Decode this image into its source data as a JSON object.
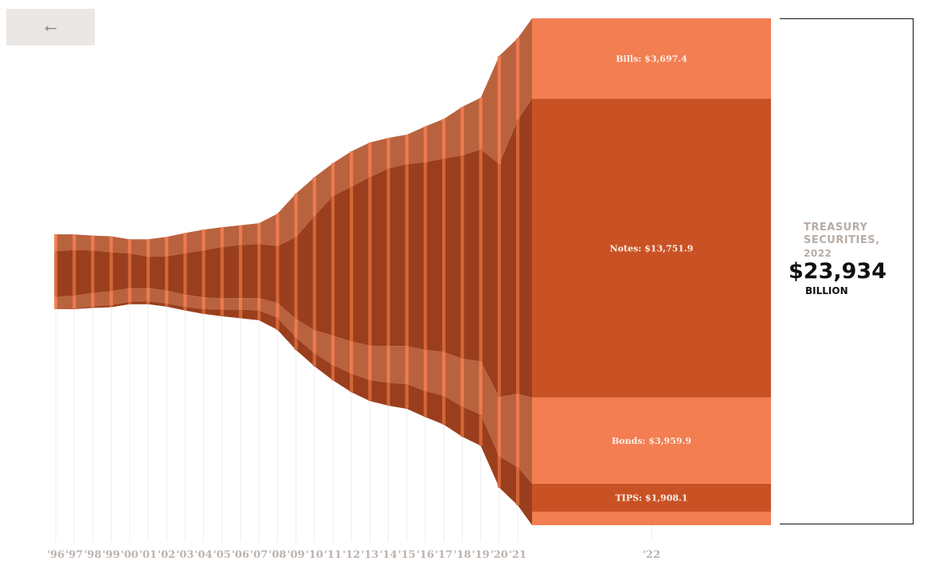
{
  "nav": {
    "back_icon": "back-arrow-icon",
    "back_glyph": "⭠"
  },
  "colors": {
    "bills": "#f27e52",
    "notes": "#c95225",
    "bonds": "#f27e52",
    "tips": "#c95225",
    "history_light": "#b9623e",
    "history_dark": "#9a3e1d",
    "year_separator": "#f27e52",
    "gridline": "#ececec",
    "tick_text": "#bdb3ae"
  },
  "total": {
    "title_line1": "TREASURY",
    "title_line2": "SECURITIES,",
    "year": "2022",
    "value": "$23,934",
    "unit": "BILLION"
  },
  "chart_data": {
    "type": "area",
    "title": "",
    "unit": "$ billion",
    "x": [
      "'96",
      "'97",
      "'98",
      "'99",
      "'00",
      "'01",
      "'02",
      "'03",
      "'04",
      "'05",
      "'06",
      "'07",
      "'08",
      "'09",
      "'10",
      "'11",
      "'12",
      "'13",
      "'14",
      "'15",
      "'16",
      "'17",
      "'18",
      "'19",
      "'20",
      "'21",
      "'22"
    ],
    "series": [
      {
        "name": "Bills",
        "values": [
          777,
          715,
          691,
          737,
          647,
          811,
          889,
          928,
          962,
          914,
          911,
          958,
          1490,
          1997,
          1784,
          1521,
          1627,
          1591,
          1411,
          1358,
          1646,
          1825,
          2240,
          2376,
          4979,
          3762,
          3697.4
        ]
      },
      {
        "name": "Notes",
        "values": [
          2113,
          2106,
          1961,
          1782,
          1610,
          1434,
          1580,
          1905,
          2157,
          2360,
          2445,
          2488,
          2624,
          3773,
          5255,
          6413,
          7120,
          7758,
          8168,
          8367,
          8634,
          8898,
          9351,
          9761,
          10713,
          12597,
          13751.9
        ]
      },
      {
        "name": "Bonds",
        "values": [
          555,
          587,
          610,
          644,
          616,
          613,
          594,
          563,
          540,
          520,
          530,
          562,
          679,
          856,
          1066,
          1358,
          1479,
          1584,
          1685,
          1752,
          1893,
          2027,
          2207,
          2436,
          2731,
          3370,
          3959.9
        ]
      },
      {
        "name": "TIPS",
        "values": [
          0,
          33,
          67,
          100,
          115,
          134,
          138,
          166,
          223,
          307,
          396,
          456,
          551,
          568,
          594,
          705,
          851,
          958,
          1054,
          1136,
          1204,
          1315,
          1381,
          1442,
          1439,
          1754,
          1908.1
        ]
      }
    ],
    "labels": {
      "bills": "Bills: $3,697.4",
      "notes": "Notes: $13,751.9",
      "bonds": "Bonds: $3,959.9",
      "tips": "TIPS: $1,908.1"
    },
    "total_2022": 23934
  }
}
